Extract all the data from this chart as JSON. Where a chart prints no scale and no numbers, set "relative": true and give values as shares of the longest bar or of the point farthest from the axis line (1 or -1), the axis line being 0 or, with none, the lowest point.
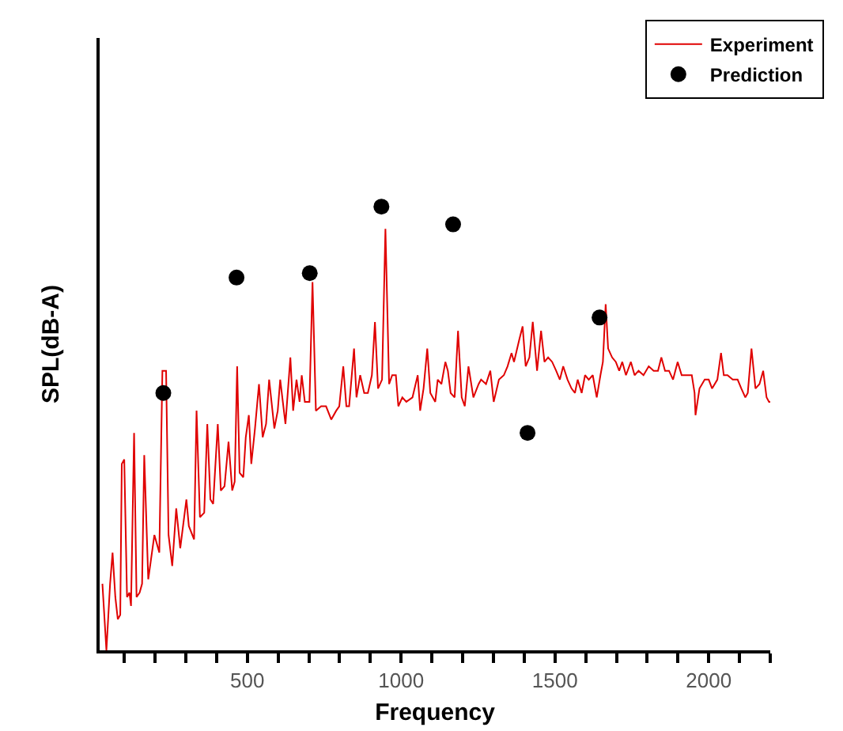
{
  "chart_data": {
    "type": "line",
    "relative": true,
    "xlabel": "Frequency",
    "ylabel": "SPL(dB-A)",
    "legend": "top right",
    "grid": false,
    "xlim": [
      20,
      2200
    ],
    "xticks": [
      {
        "value": 100,
        "label": null
      },
      {
        "value": 200,
        "label": null
      },
      {
        "value": 300,
        "label": null
      },
      {
        "value": 400,
        "label": null
      },
      500,
      {
        "value": 600,
        "label": null
      },
      {
        "value": 700,
        "label": null
      },
      {
        "value": 800,
        "label": null
      },
      {
        "value": 900,
        "label": null
      },
      1000,
      {
        "value": 1100,
        "label": null
      },
      {
        "value": 1200,
        "label": null
      },
      {
        "value": 1300,
        "label": null
      },
      {
        "value": 1400,
        "label": null
      },
      1500,
      {
        "value": 1600,
        "label": null
      },
      {
        "value": 1700,
        "label": null
      },
      {
        "value": 1800,
        "label": null
      },
      {
        "value": 1900,
        "label": null
      },
      2000,
      {
        "value": 2100,
        "label": null
      },
      {
        "value": 2200,
        "label": null
      }
    ],
    "series": [
      {
        "name": "Experiment",
        "line_style": "solid",
        "color": "#e00000",
        "x": [
          29,
          42,
          54,
          62,
          71,
          79,
          87,
          92,
          100,
          109,
          117,
          122,
          132,
          140,
          150,
          158,
          165,
          178,
          186,
          198,
          214,
          224,
          236,
          244,
          256,
          269,
          282,
          302,
          310,
          327,
          335,
          346,
          360,
          370,
          380,
          389,
          404,
          414,
          426,
          439,
          451,
          459,
          467,
          475,
          487,
          495,
          505,
          513,
          525,
          538,
          550,
          561,
          571,
          588,
          599,
          607,
          624,
          640,
          649,
          660,
          670,
          677,
          687,
          702,
          712,
          723,
          740,
          756,
          773,
          789,
          799,
          812,
          822,
          831,
          847,
          855,
          867,
          880,
          892,
          905,
          915,
          925,
          938,
          949,
          961,
          971,
          983,
          991,
          1004,
          1017,
          1037,
          1054,
          1062,
          1073,
          1085,
          1095,
          1111,
          1119,
          1131,
          1144,
          1152,
          1161,
          1174,
          1185,
          1197,
          1207,
          1219,
          1235,
          1252,
          1260,
          1276,
          1290,
          1301,
          1318,
          1334,
          1346,
          1359,
          1367,
          1384,
          1395,
          1405,
          1417,
          1428,
          1442,
          1455,
          1466,
          1478,
          1491,
          1504,
          1516,
          1527,
          1541,
          1554,
          1565,
          1574,
          1587,
          1598,
          1610,
          1623,
          1636,
          1648,
          1656,
          1665,
          1673,
          1686,
          1698,
          1709,
          1719,
          1731,
          1747,
          1759,
          1772,
          1788,
          1805,
          1821,
          1835,
          1846,
          1858,
          1871,
          1884,
          1899,
          1912,
          1929,
          1945,
          1954,
          1957,
          1970,
          1987,
          2000,
          2011,
          2028,
          2040,
          2049,
          2061,
          2078,
          2094,
          2106,
          2119,
          2127,
          2139,
          2152,
          2165,
          2177,
          2188,
          2196,
          2200
        ],
        "values": [
          0.15,
          0,
          0.15,
          0.22,
          0.12,
          0.07,
          0.08,
          0.42,
          0.43,
          0.12,
          0.13,
          0.1,
          0.49,
          0.12,
          0.13,
          0.15,
          0.44,
          0.16,
          0.2,
          0.26,
          0.22,
          0.63,
          0.63,
          0.26,
          0.19,
          0.32,
          0.23,
          0.34,
          0.28,
          0.25,
          0.54,
          0.3,
          0.31,
          0.51,
          0.34,
          0.33,
          0.51,
          0.36,
          0.37,
          0.47,
          0.36,
          0.38,
          0.64,
          0.4,
          0.39,
          0.48,
          0.53,
          0.42,
          0.5,
          0.6,
          0.48,
          0.51,
          0.61,
          0.5,
          0.54,
          0.61,
          0.51,
          0.66,
          0.54,
          0.61,
          0.56,
          0.62,
          0.56,
          0.56,
          0.83,
          0.54,
          0.55,
          0.55,
          0.52,
          0.54,
          0.55,
          0.64,
          0.55,
          0.55,
          0.68,
          0.57,
          0.62,
          0.58,
          0.58,
          0.62,
          0.74,
          0.59,
          0.61,
          0.95,
          0.6,
          0.62,
          0.62,
          0.55,
          0.57,
          0.56,
          0.57,
          0.62,
          0.54,
          0.59,
          0.68,
          0.58,
          0.56,
          0.61,
          0.6,
          0.65,
          0.63,
          0.58,
          0.57,
          0.72,
          0.57,
          0.55,
          0.64,
          0.57,
          0.6,
          0.61,
          0.6,
          0.63,
          0.56,
          0.61,
          0.62,
          0.64,
          0.67,
          0.65,
          0.7,
          0.73,
          0.64,
          0.66,
          0.74,
          0.63,
          0.72,
          0.65,
          0.66,
          0.65,
          0.63,
          0.61,
          0.64,
          0.61,
          0.59,
          0.58,
          0.61,
          0.58,
          0.62,
          0.61,
          0.62,
          0.57,
          0.62,
          0.65,
          0.78,
          0.68,
          0.66,
          0.65,
          0.63,
          0.65,
          0.62,
          0.65,
          0.62,
          0.63,
          0.62,
          0.64,
          0.63,
          0.63,
          0.66,
          0.63,
          0.63,
          0.61,
          0.65,
          0.62,
          0.62,
          0.62,
          0.58,
          0.53,
          0.59,
          0.61,
          0.61,
          0.59,
          0.61,
          0.67,
          0.62,
          0.62,
          0.61,
          0.61,
          0.59,
          0.57,
          0.58,
          0.68,
          0.59,
          0.6,
          0.63,
          0.57,
          0.56,
          0.56
        ]
      },
      {
        "name": "Prediction",
        "type": "scatter",
        "marker": "circle",
        "color": "#000000",
        "x": [
          227,
          465,
          703,
          936,
          1169,
          1411,
          1645
        ],
        "values": [
          0.58,
          0.84,
          0.85,
          1,
          0.96,
          0.49,
          0.75
        ]
      }
    ]
  }
}
